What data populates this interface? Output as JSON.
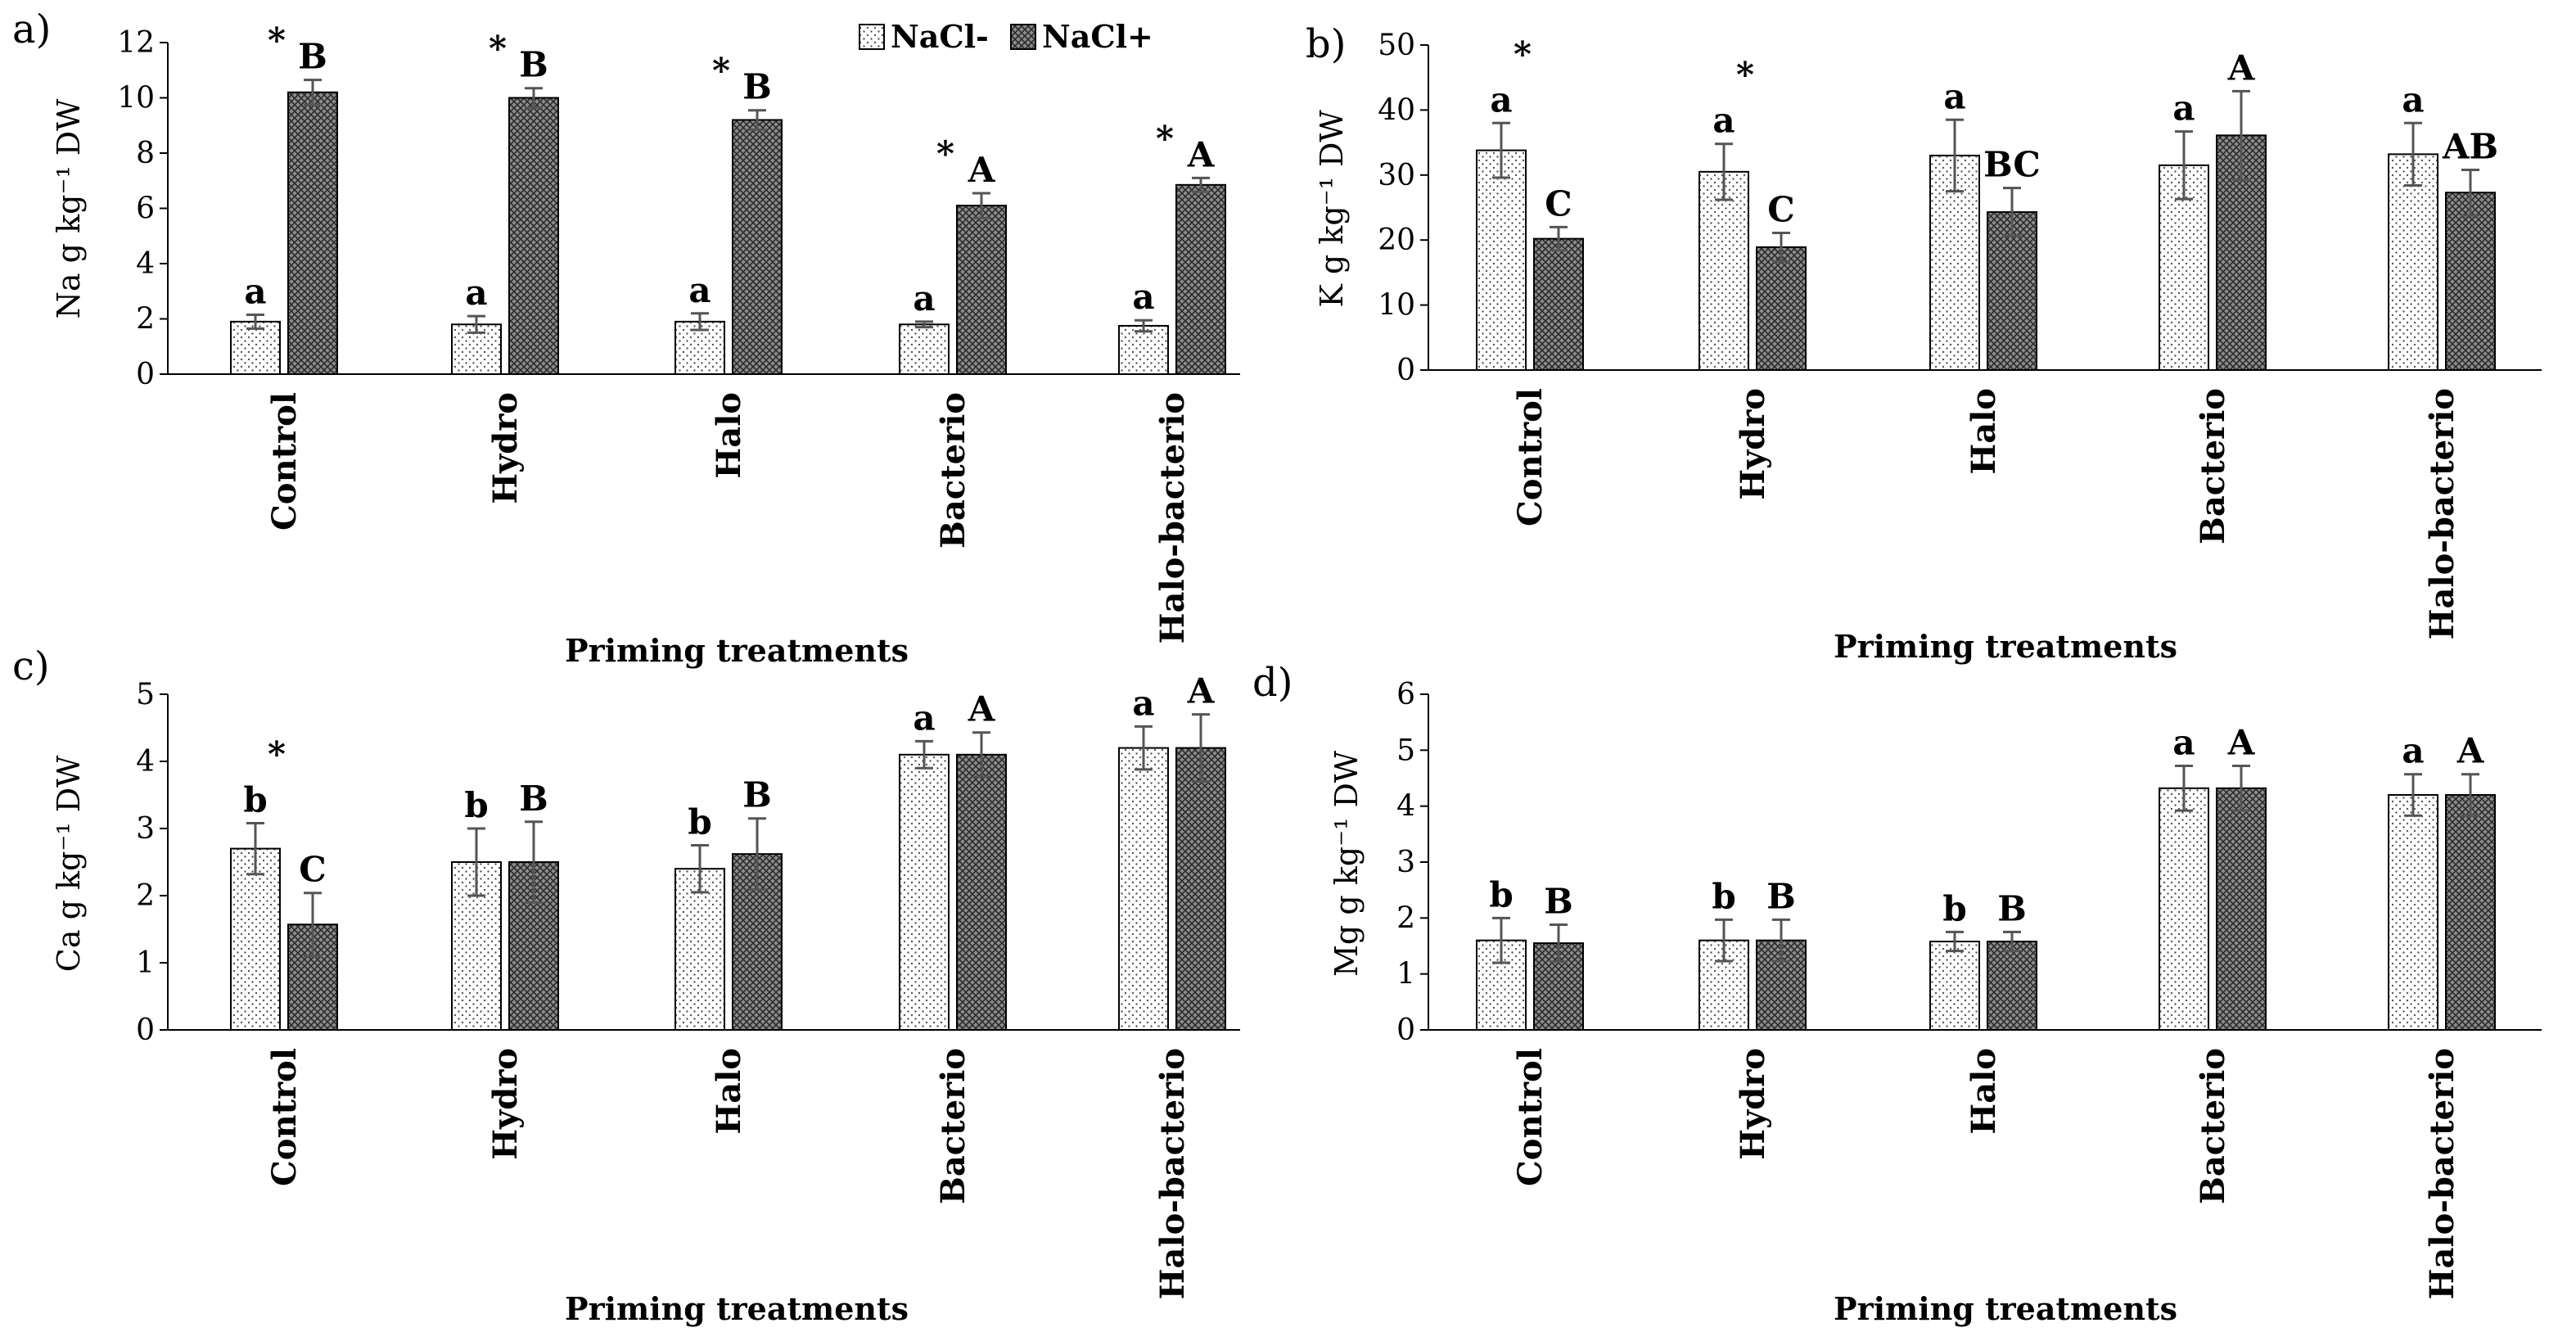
{
  "legend": {
    "items": [
      {
        "label": "NaCl-",
        "pattern": "dots"
      },
      {
        "label": "NaCl+",
        "pattern": "crosshatch"
      }
    ]
  },
  "chart_data": [
    {
      "panel": "a)",
      "type": "bar",
      "ylabel": "Na g kg⁻¹ DW",
      "xlabel": "Priming treatments",
      "categories": [
        "Control",
        "Hydro",
        "Halo",
        "Bacterio",
        "Halo-bacterio"
      ],
      "ylim": [
        0,
        12
      ],
      "yticks": [
        0,
        2,
        4,
        6,
        8,
        10,
        12
      ],
      "series": [
        {
          "name": "NaCl-",
          "values": [
            1.9,
            1.8,
            1.9,
            1.8,
            1.75
          ],
          "errors": [
            0.25,
            0.3,
            0.3,
            0.1,
            0.2
          ],
          "letters": [
            "a",
            "a",
            "a",
            "a",
            "a"
          ]
        },
        {
          "name": "NaCl+",
          "values": [
            10.2,
            10.0,
            9.2,
            6.1,
            6.85
          ],
          "errors": [
            0.45,
            0.35,
            0.35,
            0.45,
            0.25
          ],
          "letters": [
            "B",
            "B",
            "B",
            "A",
            "A"
          ]
        }
      ],
      "stars": [
        true,
        true,
        true,
        true,
        true
      ]
    },
    {
      "panel": "b)",
      "type": "bar",
      "ylabel": "K g kg⁻¹ DW",
      "xlabel": "Priming treatments",
      "categories": [
        "Control",
        "Hydro",
        "Halo",
        "Bacterio",
        "Halo-bacterio"
      ],
      "ylim": [
        0,
        50
      ],
      "yticks": [
        0,
        10,
        20,
        30,
        40,
        50
      ],
      "series": [
        {
          "name": "NaCl-",
          "values": [
            33.8,
            30.5,
            33.0,
            31.5,
            33.2
          ],
          "errors": [
            4.2,
            4.3,
            5.5,
            5.2,
            4.8
          ],
          "letters": [
            "a",
            "a",
            "a",
            "a",
            "a"
          ]
        },
        {
          "name": "NaCl+",
          "values": [
            20.2,
            18.9,
            24.3,
            36.1,
            27.3
          ],
          "errors": [
            1.8,
            2.2,
            3.7,
            6.8,
            3.5
          ],
          "letters": [
            "C",
            "C",
            "BC",
            "A",
            "AB"
          ]
        }
      ],
      "stars": [
        true,
        true,
        false,
        false,
        false
      ]
    },
    {
      "panel": "c)",
      "type": "bar",
      "ylabel": "Ca g kg⁻¹ DW",
      "xlabel": "Priming treatments",
      "categories": [
        "Control",
        "Hydro",
        "Halo",
        "Bacterio",
        "Halo-bacterio"
      ],
      "ylim": [
        0,
        5
      ],
      "yticks": [
        0,
        1,
        2,
        3,
        4,
        5
      ],
      "series": [
        {
          "name": "NaCl-",
          "values": [
            2.7,
            2.5,
            2.4,
            4.1,
            4.2
          ],
          "errors": [
            0.38,
            0.5,
            0.35,
            0.2,
            0.32
          ],
          "letters": [
            "b",
            "b",
            "b",
            "a",
            "a"
          ]
        },
        {
          "name": "NaCl+",
          "values": [
            1.57,
            2.5,
            2.62,
            4.1,
            4.2
          ],
          "errors": [
            0.47,
            0.6,
            0.53,
            0.33,
            0.5
          ],
          "letters": [
            "C",
            "B",
            "B",
            "A",
            "A"
          ]
        }
      ],
      "stars": [
        true,
        false,
        false,
        false,
        false
      ]
    },
    {
      "panel": "d)",
      "type": "bar",
      "ylabel": "Mg g kg⁻¹ DW",
      "xlabel": "Priming treatments",
      "categories": [
        "Control",
        "Hydro",
        "Halo",
        "Bacterio",
        "Halo-bacterio"
      ],
      "ylim": [
        0,
        6
      ],
      "yticks": [
        0,
        1,
        2,
        3,
        4,
        5,
        6
      ],
      "series": [
        {
          "name": "NaCl-",
          "values": [
            1.6,
            1.6,
            1.58,
            4.32,
            4.2
          ],
          "errors": [
            0.4,
            0.37,
            0.17,
            0.4,
            0.37
          ],
          "letters": [
            "b",
            "b",
            "b",
            "a",
            "a"
          ]
        },
        {
          "name": "NaCl+",
          "values": [
            1.55,
            1.6,
            1.58,
            4.32,
            4.2
          ],
          "errors": [
            0.33,
            0.37,
            0.17,
            0.4,
            0.37
          ],
          "letters": [
            "B",
            "B",
            "B",
            "A",
            "A"
          ]
        }
      ],
      "stars": [
        false,
        false,
        false,
        false,
        false
      ]
    }
  ]
}
